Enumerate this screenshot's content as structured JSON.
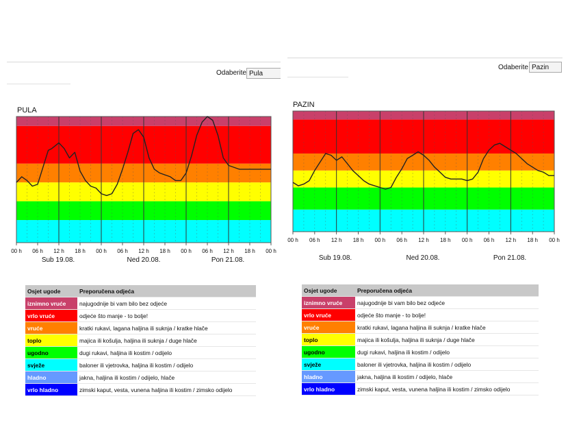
{
  "select_label": "Odaberite",
  "panels": [
    {
      "city": "PULA",
      "selected": "Pula"
    },
    {
      "city": "PAZIN",
      "selected": "Pazin"
    }
  ],
  "legend": {
    "header": [
      "Osjet ugode",
      "Preporučena odjeća"
    ],
    "rows": [
      {
        "label": "iznimno vruće",
        "text": "najugodnije bi vam bilo bez odjeće",
        "color": "#c9406a",
        "fg": "#ffffff"
      },
      {
        "label": "vrlo vruće",
        "text": "odjeće što manje - to bolje!",
        "color": "#ff0000",
        "fg": "#ffffff"
      },
      {
        "label": "vruće",
        "text": "kratki rukavi, lagana haljina ili suknja / kratke hlače",
        "color": "#ff8000",
        "fg": "#ffffff"
      },
      {
        "label": "toplo",
        "text": "majica ili košulja, haljina ili suknja / duge hlače",
        "color": "#ffff00",
        "fg": "#000000"
      },
      {
        "label": "ugodno",
        "text": "dugi rukavi, haljina ili kostim / odijelo",
        "color": "#00ff00",
        "fg": "#000000"
      },
      {
        "label": "svježe",
        "text": "baloner ili vjetrovka, haljina ili kostim / odijelo",
        "color": "#00ffff",
        "fg": "#000000"
      },
      {
        "label": "hladno",
        "text": "jakna, haljina ili kostim / odijelo, hlače",
        "color": "#6699ff",
        "fg": "#ffffff"
      },
      {
        "label": "vrlo hladno",
        "text": "zimski kaput, vesta, vunena haljina ili kostim / zimsko odijelo",
        "color": "#0000ff",
        "fg": "#ffffff"
      }
    ]
  },
  "chart_data": [
    {
      "type": "line",
      "title": "PULA",
      "x_ticks": [
        "00 h",
        "06 h",
        "12 h",
        "18 h",
        "00 h",
        "06 h",
        "12 h",
        "18 h",
        "00 h",
        "06 h",
        "12 h",
        "18 h",
        "00 h"
      ],
      "days": [
        "Sub 19.08.",
        "Ned 20.08.",
        "Pon 21.08."
      ],
      "y_range": [
        0,
        8
      ],
      "bands": [
        "#00ffff",
        "#00ff00",
        "#ffff00",
        "#ff8000",
        "#ff0000",
        "#c9406a"
      ],
      "band_levels": [
        0,
        1.2,
        2.2,
        3.2,
        4.2,
        6.2,
        6.7
      ],
      "series": [
        {
          "x": [
            0,
            3,
            6,
            9,
            12,
            15,
            18,
            20,
            24,
            27,
            30,
            33,
            36,
            39,
            42,
            45,
            48,
            51,
            54,
            57,
            60,
            63,
            66,
            69,
            72,
            75,
            78,
            81,
            84,
            87,
            90,
            93,
            96,
            99,
            102,
            105,
            108,
            111,
            114,
            117,
            120,
            123,
            126,
            129,
            132,
            135,
            138,
            141,
            144
          ],
          "y": [
            3.2,
            3.5,
            3.3,
            3.0,
            3.1,
            4.0,
            4.9,
            5.0,
            5.3,
            5.0,
            4.5,
            4.8,
            3.8,
            3.3,
            3.0,
            2.9,
            2.6,
            2.5,
            2.6,
            3.1,
            3.9,
            4.8,
            5.8,
            6.0,
            5.6,
            4.5,
            3.9,
            3.7,
            3.6,
            3.5,
            3.3,
            3.3,
            3.7,
            4.6,
            5.7,
            6.4,
            6.7,
            6.5,
            5.7,
            4.5,
            4.1,
            4.0,
            3.9,
            3.9,
            3.9,
            3.9,
            3.9,
            3.9,
            3.9
          ]
        }
      ]
    },
    {
      "type": "line",
      "title": "PAZIN",
      "x_ticks": [
        "00 h",
        "06 h",
        "12 h",
        "18 h",
        "00 h",
        "06 h",
        "12 h",
        "18 h",
        "00 h",
        "06 h",
        "12 h",
        "18 h",
        "00 h"
      ],
      "days": [
        "Sub 19.08.",
        "Ned 20.08.",
        "Pon 21.08."
      ],
      "y_range": [
        0,
        8
      ],
      "bands": [
        "#00ffff",
        "#00ff00",
        "#ffff00",
        "#ff8000",
        "#ff0000",
        "#c9406a"
      ],
      "band_levels": [
        0,
        1.3,
        2.6,
        3.6,
        4.6,
        6.6,
        7.1
      ],
      "series": [
        {
          "x": [
            0,
            3,
            6,
            9,
            12,
            15,
            18,
            21,
            24,
            27,
            30,
            33,
            36,
            39,
            42,
            45,
            48,
            51,
            54,
            57,
            60,
            63,
            66,
            69,
            72,
            75,
            78,
            81,
            84,
            87,
            90,
            93,
            96,
            99,
            102,
            105,
            108,
            111,
            114,
            117,
            120,
            123,
            126,
            129,
            132,
            135,
            138,
            141,
            144
          ],
          "y": [
            2.9,
            2.7,
            2.8,
            3.0,
            3.6,
            4.1,
            4.6,
            4.5,
            4.2,
            4.4,
            4.0,
            3.6,
            3.3,
            3.0,
            2.8,
            2.7,
            2.6,
            2.5,
            2.6,
            3.2,
            3.7,
            4.3,
            4.5,
            4.7,
            4.5,
            4.2,
            3.8,
            3.5,
            3.2,
            3.1,
            3.1,
            3.1,
            3.0,
            3.1,
            3.5,
            4.3,
            4.8,
            5.1,
            5.2,
            5.0,
            4.8,
            4.6,
            4.3,
            4.0,
            3.8,
            3.6,
            3.5,
            3.3,
            3.3
          ]
        }
      ]
    }
  ]
}
